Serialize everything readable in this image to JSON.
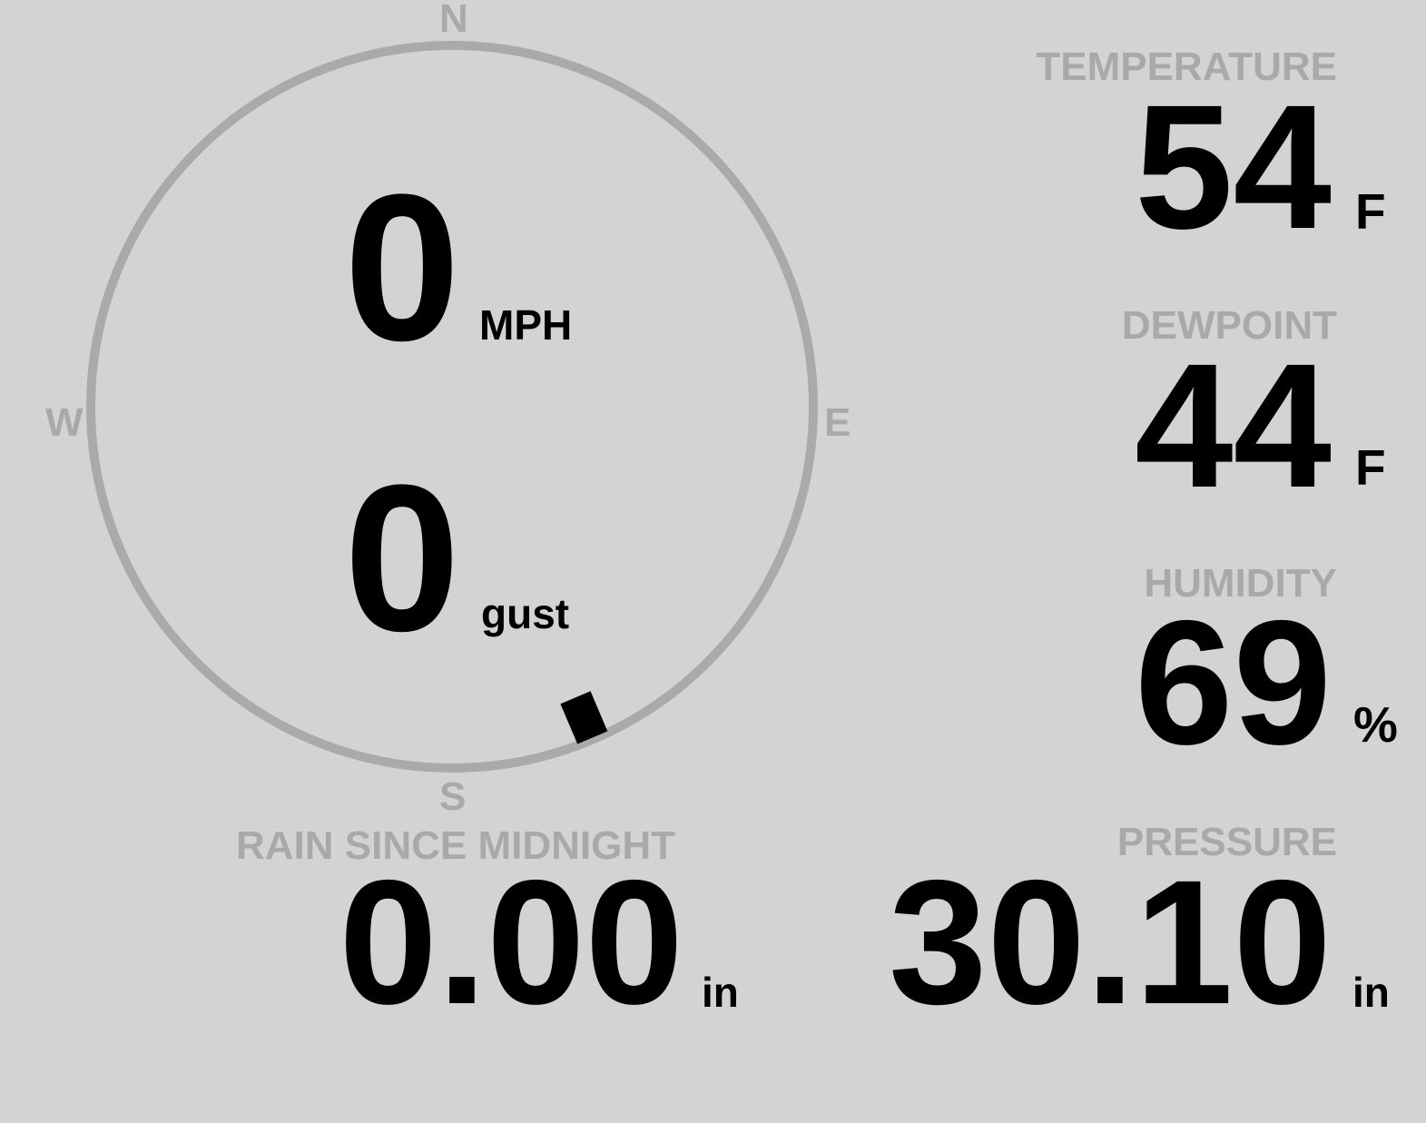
{
  "compass": {
    "north": "N",
    "south": "S",
    "east": "E",
    "west": "W",
    "ring_color": "#aaaaaa",
    "needle_color": "#000000"
  },
  "wind": {
    "direction_deg": 157,
    "speed": "0",
    "speed_unit": "MPH",
    "gust": "0",
    "gust_unit": "gust"
  },
  "temperature": {
    "label": "TEMPERATURE",
    "value": "54",
    "unit": "F"
  },
  "dewpoint": {
    "label": "DEWPOINT",
    "value": "44",
    "unit": "F"
  },
  "humidity": {
    "label": "HUMIDITY",
    "value": "69",
    "unit": "%"
  },
  "rain": {
    "label": "RAIN SINCE MIDNIGHT",
    "value": "0.00",
    "unit": "in"
  },
  "pressure": {
    "label": "PRESSURE",
    "value": "30.10",
    "unit": "in"
  }
}
